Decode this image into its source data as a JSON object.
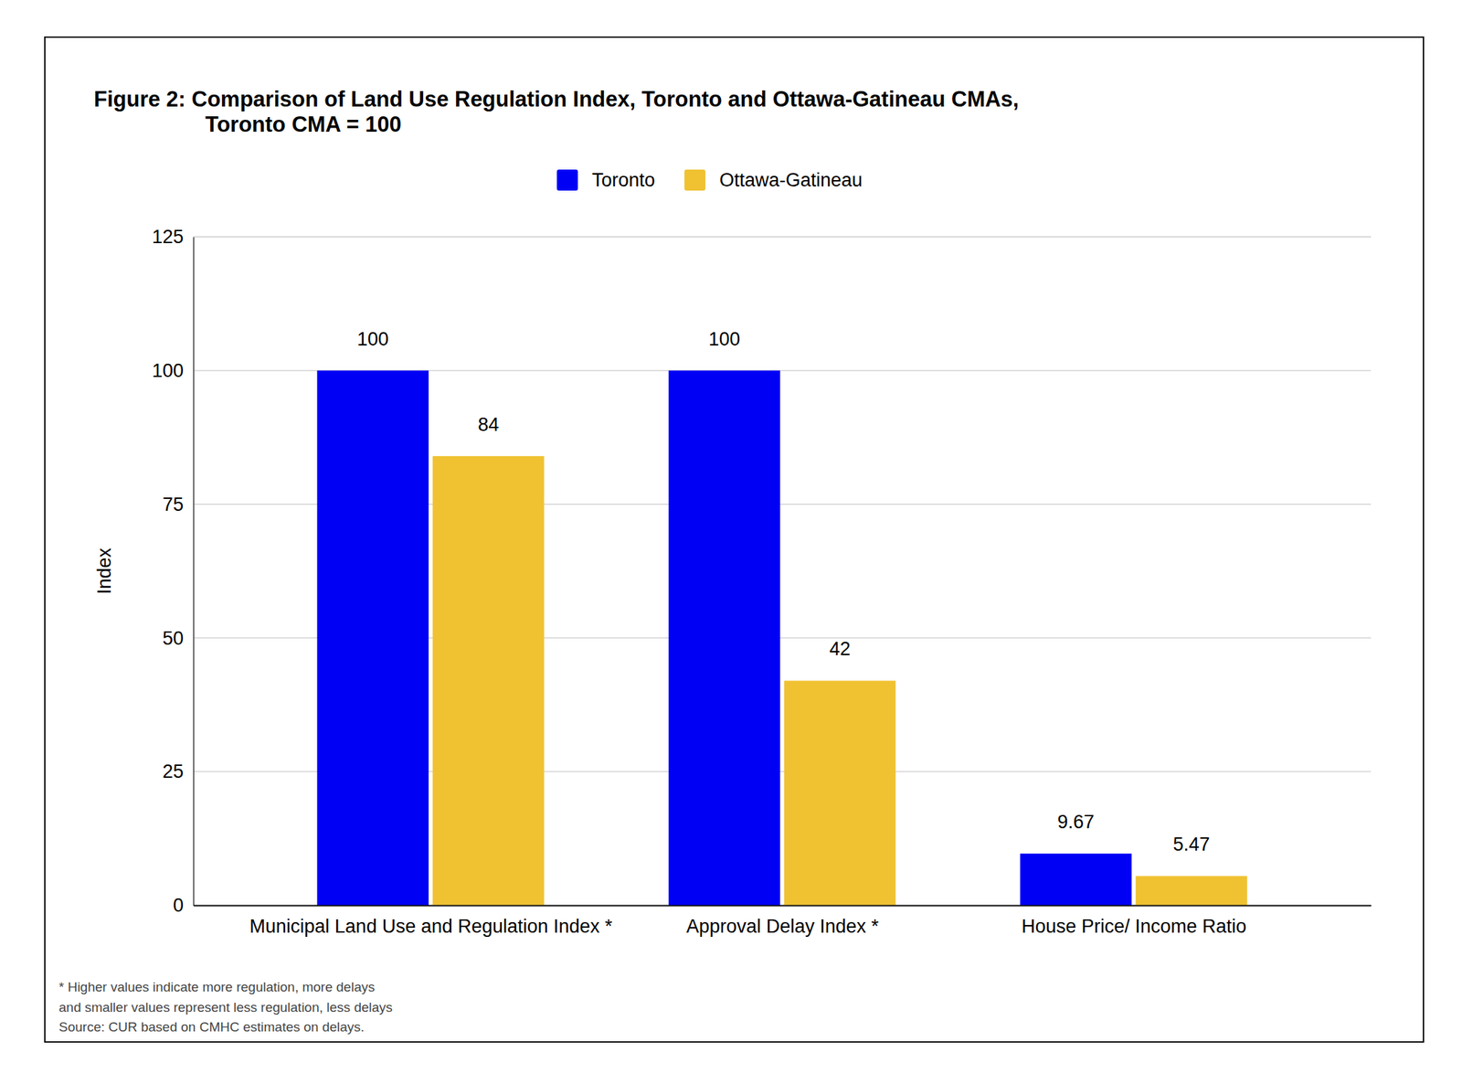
{
  "chart_data": {
    "type": "bar",
    "title": [
      "Figure 2: Comparison of Land Use Regulation Index, Toronto and Ottawa-Gatineau CMAs,",
      "Toronto CMA = 100"
    ],
    "y_label": "Index",
    "categories": [
      "Municipal Land Use and Regulation Index *",
      "Approval Delay Index *",
      "House Price/ Income Ratio"
    ],
    "series": [
      {
        "name": "Toronto",
        "color": "#0000f5",
        "values": [
          100,
          100,
          9.67
        ]
      },
      {
        "name": "Ottawa-Gatineau",
        "color": "#f0c232",
        "values": [
          84,
          42,
          5.47
        ]
      }
    ],
    "ylim": [
      0,
      125
    ],
    "yticks": [
      0,
      25,
      50,
      75,
      100,
      125
    ],
    "grid": true,
    "legend": "top",
    "data_labels": true,
    "annotations": [
      "* Higher values indicate more regulation, more delays",
      "and smaller values represent less regulation, less delays",
      "Source: CUR based on CMHC estimates on delays."
    ]
  }
}
